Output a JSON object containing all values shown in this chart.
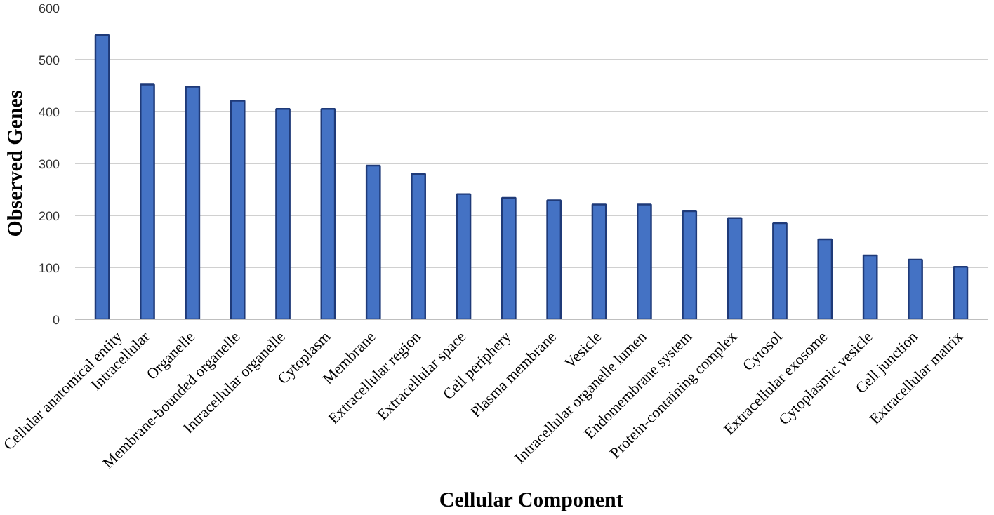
{
  "chart_data": {
    "type": "bar",
    "xlabel": "Cellular Component",
    "ylabel": "Observed Genes",
    "categories": [
      "Cellular anatomical entity",
      "Intracellular",
      "Organelle",
      "Membrane-bounded organelle",
      "Intracellular organelle",
      "Cytoplasm",
      "Membrane",
      "Extracellular region",
      "Extracellular space",
      "Cell periphery",
      "Plasma membrane",
      "Vesicle",
      "Intracellular organelle lumen",
      "Endomembrane system",
      "Protein-containing complex",
      "Cytosol",
      "Extracellular exosome",
      "Cytoplasmic vesicle",
      "Cell junction",
      "Extracellular matrix"
    ],
    "values": [
      547,
      452,
      448,
      421,
      405,
      405,
      296,
      280,
      241,
      234,
      229,
      221,
      221,
      208,
      195,
      185,
      154,
      123,
      115,
      101
    ],
    "color": "#4472c4",
    "ylim": [
      0,
      600
    ],
    "yticks": [
      0,
      100,
      200,
      300,
      400,
      500,
      600
    ],
    "grid": "y"
  }
}
